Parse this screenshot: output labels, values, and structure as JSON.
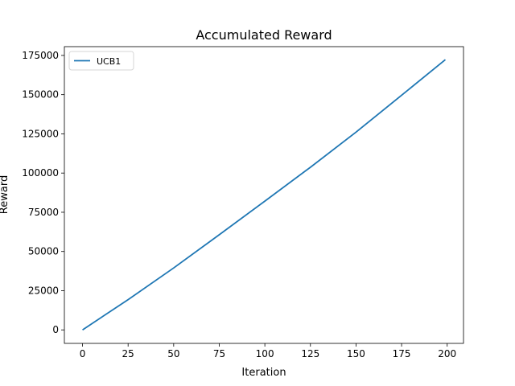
{
  "chart_data": {
    "type": "line",
    "title": "Accumulated Reward",
    "xlabel": "Iteration",
    "ylabel": "Reward",
    "xlim": [
      -9.95,
      208.95
    ],
    "ylim": [
      -8600,
      180600
    ],
    "grid": false,
    "legend_position": "top-left",
    "x_ticks": [
      0,
      25,
      50,
      75,
      100,
      125,
      150,
      175,
      200
    ],
    "y_ticks": [
      0,
      25000,
      50000,
      75000,
      100000,
      125000,
      150000,
      175000
    ],
    "series": [
      {
        "name": "UCB1",
        "color": "#1f77b4",
        "x": [
          0,
          25,
          50,
          75,
          100,
          125,
          150,
          175,
          199
        ],
        "y": [
          0,
          19300,
          39500,
          60700,
          82100,
          103700,
          126100,
          149600,
          172300
        ]
      }
    ]
  }
}
